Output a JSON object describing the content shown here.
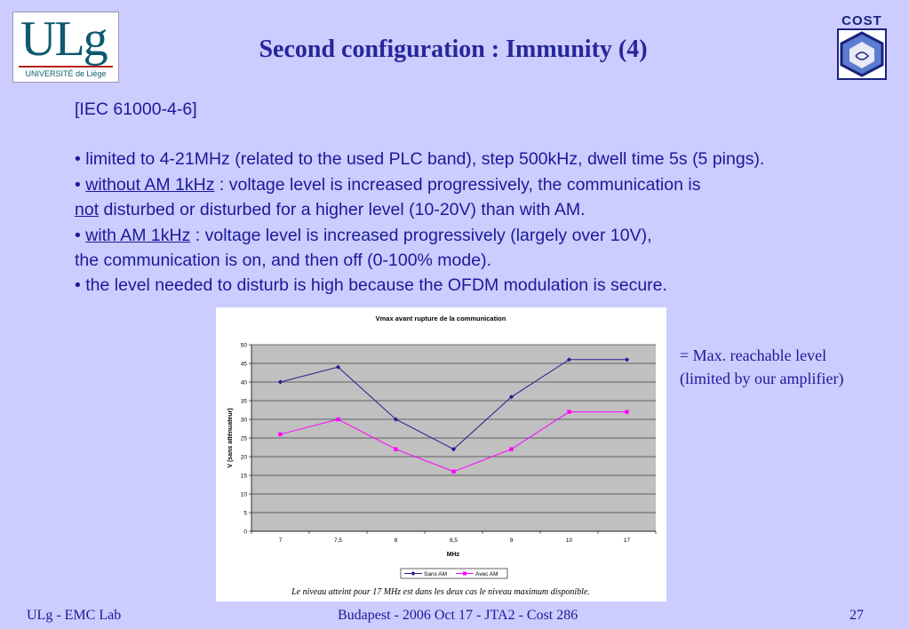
{
  "slide_title": "Second configuration : Immunity (4)",
  "logos": {
    "left_main": "ULg",
    "left_sub": "UNIVERSITÉ de Liège",
    "right_word": "COST"
  },
  "body": {
    "line1": "[IEC 61000-4-6]",
    "line2": "• limited to 4-21MHz (related to the used PLC band), step 500kHz, dwell time 5s (5 pings).",
    "line3_bullet": "• ",
    "line3_u": "without AM 1kHz",
    "line3_rest": " : voltage level is increased progressively, the communication is",
    "line4_u": "not",
    "line4_rest": " disturbed or disturbed for a higher level (10-20V) than with AM.",
    "line5_bullet": "• ",
    "line5_u": "with AM 1kHz",
    "line5_rest": " : voltage level is increased progressively (largely over 10V),",
    "line6": "the communication is on, and then off (0-100% mode).",
    "line7": "• the level needed to disturb is high because the OFDM modulation is secure."
  },
  "note": {
    "line1": "= Max. reachable level",
    "line2": "(limited by our amplifier)"
  },
  "footer": {
    "left": "ULg - EMC Lab",
    "center": "Budapest - 2006 Oct 17 - JTA2 - Cost 286",
    "page": "27"
  },
  "chart_data": {
    "type": "line",
    "title": "Vmax avant rupture de la communication",
    "xlabel": "MHz",
    "ylabel": "V (sans atténuateur)",
    "categories": [
      "7",
      "7,5",
      "8",
      "8,5",
      "9",
      "10",
      "17"
    ],
    "ylim": [
      0,
      50
    ],
    "yticks": [
      0,
      5,
      10,
      15,
      20,
      25,
      30,
      35,
      40,
      45,
      50
    ],
    "grid": true,
    "legend_position": "bottom",
    "series": [
      {
        "name": "Sans AM",
        "values": [
          40,
          44,
          30,
          22,
          36,
          46,
          46
        ],
        "color": "#1f1f8f",
        "marker": "diamond"
      },
      {
        "name": "Avec AM",
        "values": [
          26,
          30,
          22,
          16,
          22,
          32,
          32
        ],
        "color": "#ff00ff",
        "marker": "square"
      }
    ],
    "caption": "Le niveau atteint pour 17 MHz est dans les deux cas le niveau maximum disponible."
  }
}
